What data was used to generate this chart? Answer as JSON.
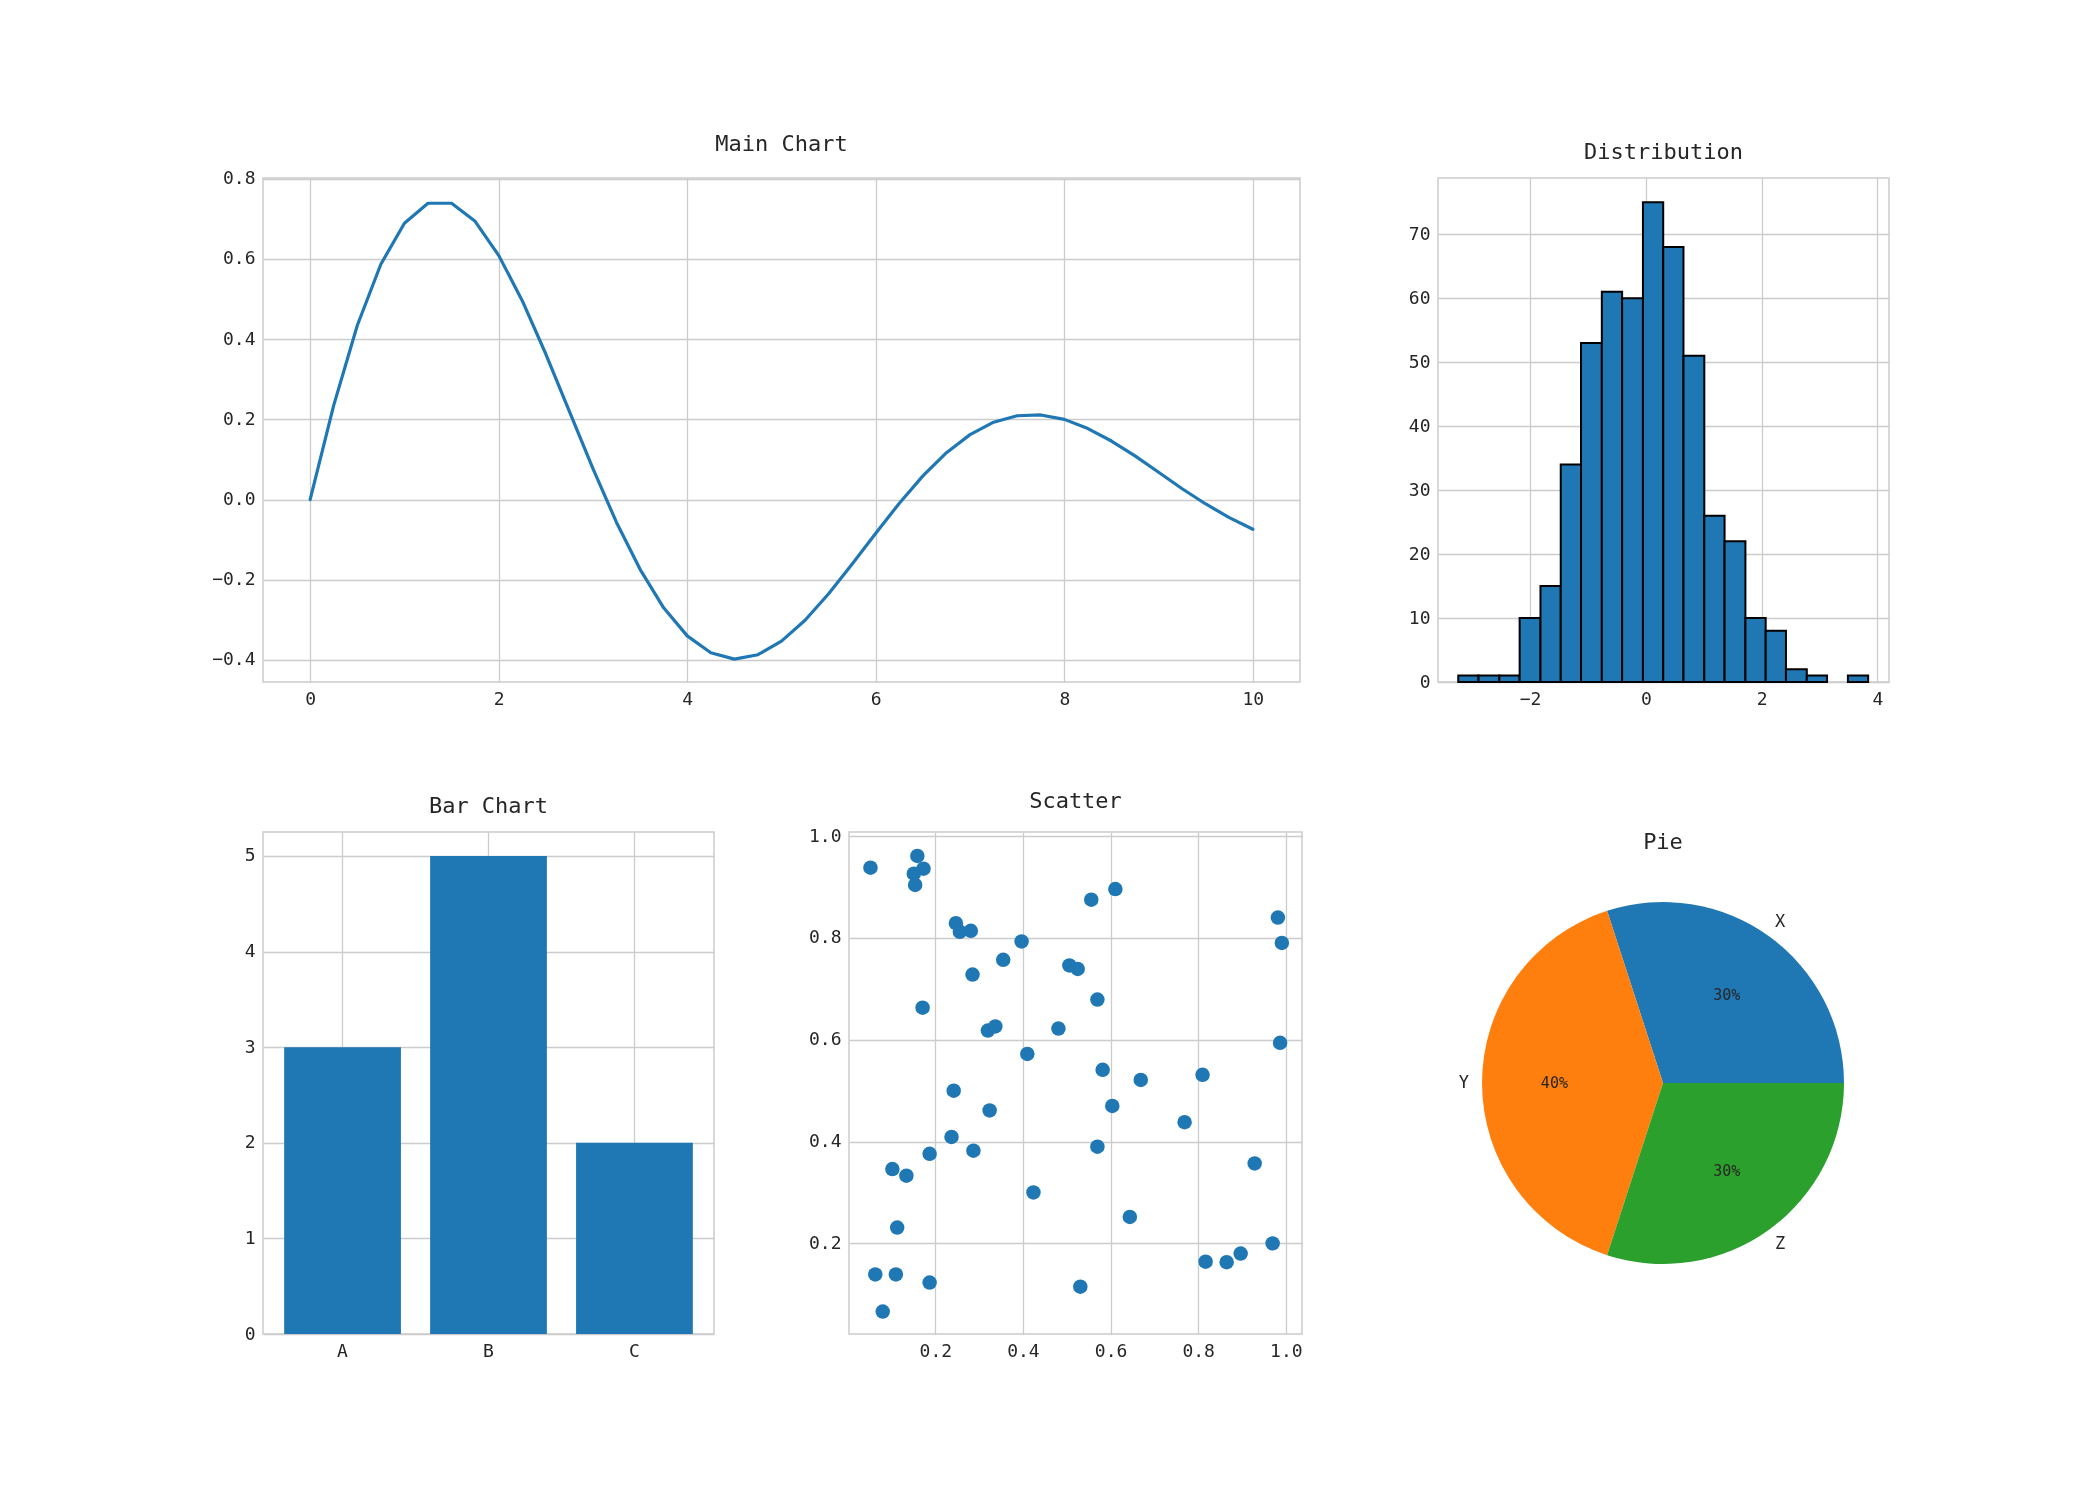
{
  "chart_data": [
    {
      "type": "line",
      "title": "Main Chart",
      "grid": true,
      "x": [
        0,
        0.25,
        0.5,
        0.75,
        1,
        1.25,
        1.5,
        1.75,
        2,
        2.25,
        2.5,
        2.75,
        3,
        3.25,
        3.5,
        3.75,
        4,
        4.25,
        4.5,
        4.75,
        5,
        5.25,
        5.5,
        5.75,
        6,
        6.25,
        6.5,
        6.75,
        7,
        7.25,
        7.5,
        7.75,
        8,
        8.25,
        8.5,
        8.75,
        9,
        9.25,
        9.5,
        9.75,
        10
      ],
      "series": [
        {
          "color": "#1f77b4",
          "values": [
            0,
            0.235,
            0.434,
            0.587,
            0.689,
            0.739,
            0.739,
            0.694,
            0.609,
            0.496,
            0.363,
            0.22,
            0.077,
            -0.057,
            -0.174,
            -0.27,
            -0.34,
            -0.382,
            -0.398,
            -0.387,
            -0.353,
            -0.301,
            -0.235,
            -0.161,
            -0.084,
            -0.009,
            0.059,
            0.117,
            0.162,
            0.193,
            0.209,
            0.211,
            0.2,
            0.177,
            0.146,
            0.109,
            0.068,
            0.027,
            -0.011,
            -0.045,
            -0.074
          ]
        }
      ],
      "xlim": [
        -0.5,
        10.5
      ],
      "xticks": [
        0,
        2,
        4,
        6,
        8,
        10
      ],
      "ylim": [
        -0.455,
        0.802
      ],
      "yticks": [
        {
          "value": -0.4,
          "label": "−0.4"
        },
        {
          "value": -0.2,
          "label": "−0.2"
        },
        {
          "value": 0,
          "label": "0.0"
        },
        {
          "value": 0.2,
          "label": "0.2"
        },
        {
          "value": 0.4,
          "label": "0.4"
        },
        {
          "value": 0.6,
          "label": "0.6"
        },
        {
          "value": 0.8,
          "label": "0.8"
        }
      ]
    },
    {
      "type": "histogram",
      "title": "Distribution",
      "grid": true,
      "color": "#1f77b4",
      "bins": [
        -3.24,
        -2.89,
        -2.53,
        -2.18,
        -1.82,
        -1.47,
        -1.12,
        -0.76,
        -0.41,
        -0.05,
        0.3,
        0.65,
        1.01,
        1.36,
        1.72,
        2.07,
        2.42,
        2.78,
        3.13,
        3.49,
        3.84
      ],
      "values": [
        1,
        1,
        1,
        10,
        15,
        34,
        53,
        61,
        60,
        75,
        68,
        51,
        26,
        22,
        10,
        8,
        2,
        1,
        0,
        1
      ],
      "xlim": [
        -3.59,
        4.2
      ],
      "xticks": [
        {
          "value": -2,
          "label": "−2"
        },
        0,
        2,
        4
      ],
      "ylim": [
        0,
        78.8
      ],
      "yticks": [
        0,
        10,
        20,
        30,
        40,
        50,
        60,
        70
      ]
    },
    {
      "type": "bar",
      "title": "Bar Chart",
      "grid": true,
      "color": "#1f77b4",
      "categories": [
        "A",
        "B",
        "C"
      ],
      "values": [
        3,
        5,
        2
      ],
      "ylim": [
        0,
        5.25
      ],
      "yticks": [
        0,
        1,
        2,
        3,
        4,
        5
      ]
    },
    {
      "type": "scatter",
      "title": "Scatter",
      "grid": true,
      "marker": "circle",
      "series": [
        {
          "color": "#1f77b4",
          "x": [
            0.052,
            0.159,
            0.173,
            0.151,
            0.154,
            0.611,
            0.556,
            0.982,
            0.247,
            0.256,
            0.281,
            0.397,
            0.991,
            0.355,
            0.506,
            0.525,
            0.285,
            0.57,
            0.171,
            0.32,
            0.337,
            0.481,
            0.987,
            0.41,
            0.582,
            0.669,
            0.81,
            0.242,
            0.604,
            0.324,
            0.769,
            0.237,
            0.57,
            0.287,
            0.187,
            0.102,
            0.134,
            0.929,
            0.424,
            0.644,
            0.113,
            0.97,
            0.897,
            0.817,
            0.865,
            0.063,
            0.11,
            0.187,
            0.531,
            0.08
          ],
          "values": [
            0.938,
            0.961,
            0.936,
            0.926,
            0.904,
            0.896,
            0.875,
            0.84,
            0.829,
            0.812,
            0.814,
            0.793,
            0.79,
            0.757,
            0.746,
            0.739,
            0.728,
            0.679,
            0.663,
            0.618,
            0.626,
            0.622,
            0.594,
            0.572,
            0.541,
            0.521,
            0.531,
            0.5,
            0.47,
            0.461,
            0.438,
            0.409,
            0.39,
            0.382,
            0.376,
            0.346,
            0.333,
            0.357,
            0.3,
            0.252,
            0.231,
            0.2,
            0.18,
            0.164,
            0.163,
            0.139,
            0.139,
            0.123,
            0.115,
            0.066
          ]
        }
      ],
      "xlim": [
        0.003,
        1.037
      ],
      "xticks": [
        0.2,
        0.4,
        0.6,
        0.8,
        {
          "value": 1,
          "label": "1.0"
        }
      ],
      "ylim": [
        0.022,
        1.008
      ],
      "yticks": [
        0.2,
        0.4,
        0.6,
        0.8,
        {
          "value": 1,
          "label": "1.0"
        }
      ]
    },
    {
      "type": "pie",
      "title": "Pie",
      "categories": [
        "X",
        "Y",
        "Z"
      ],
      "values": [
        30,
        40,
        30
      ],
      "colors": [
        "#1f77b4",
        "#ff7f0e",
        "#2ca02c"
      ],
      "value_labels": [
        "30%",
        "40%",
        "30%"
      ]
    }
  ]
}
